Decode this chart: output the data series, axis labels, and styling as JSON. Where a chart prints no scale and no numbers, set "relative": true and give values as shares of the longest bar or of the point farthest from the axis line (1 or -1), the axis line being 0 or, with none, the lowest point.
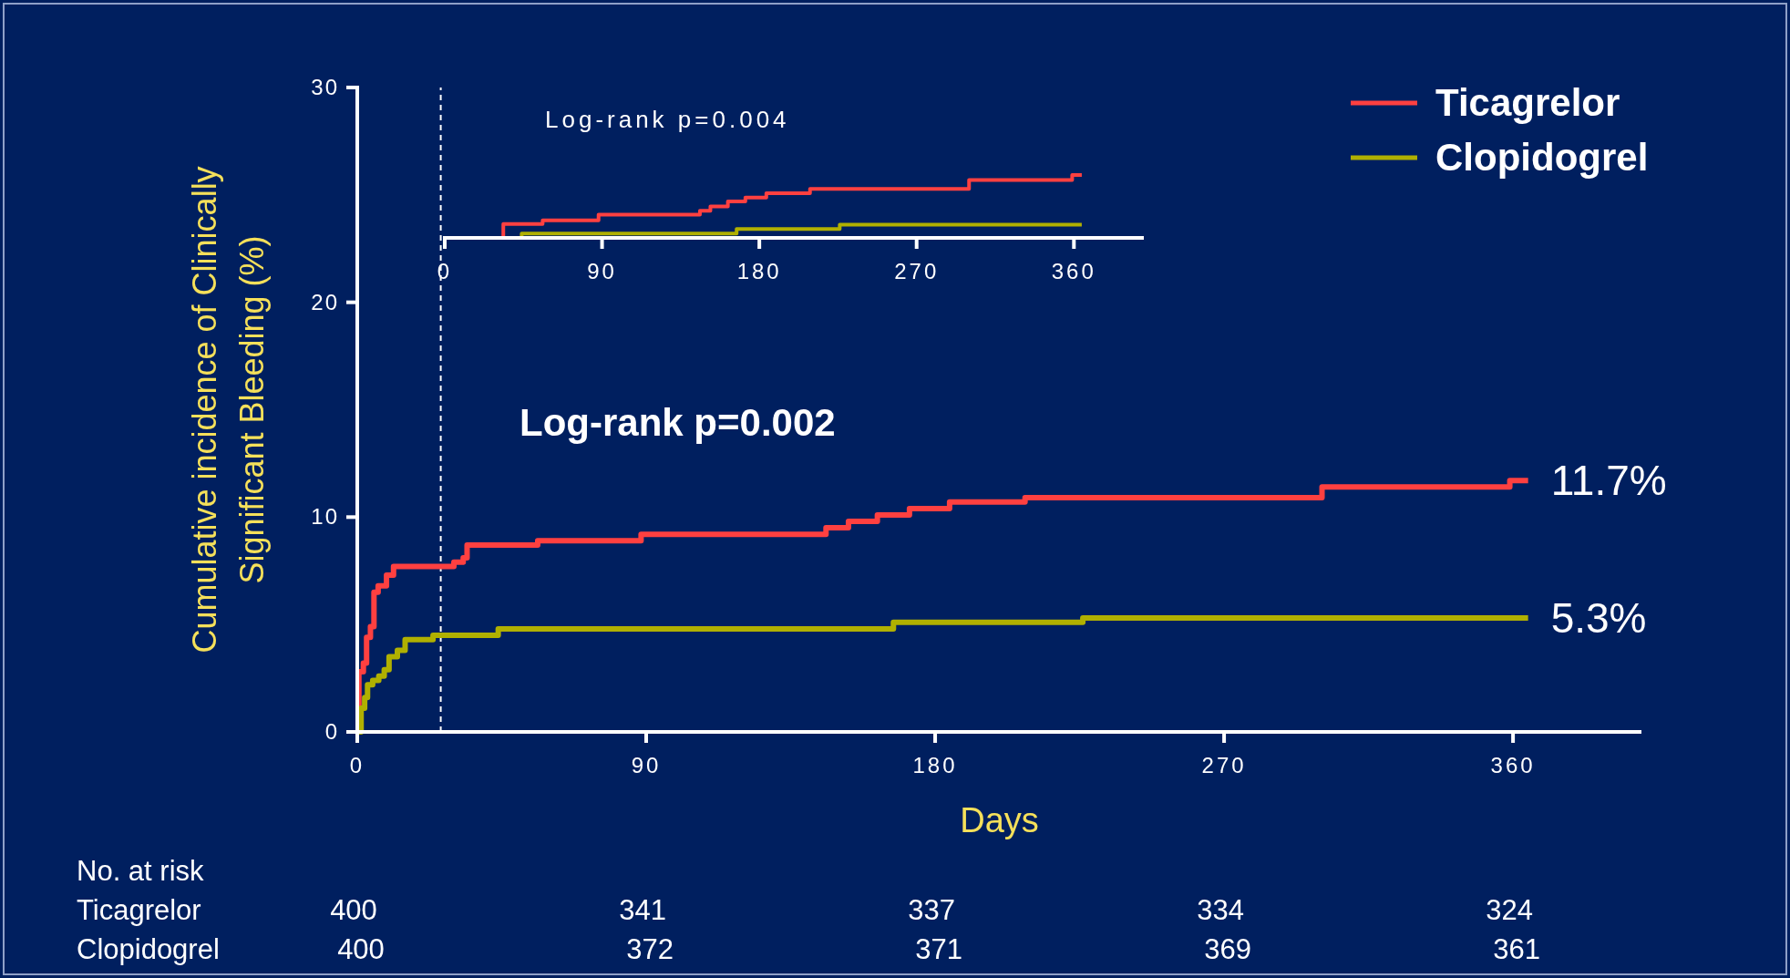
{
  "chart_data": [
    {
      "type": "step",
      "xlabel": "Days",
      "ylabel": "Cumulative incidence of Clinically\nSignificant Bleeding (%)",
      "xlim": [
        0,
        400
      ],
      "xticks": [
        0,
        90,
        180,
        270,
        360
      ],
      "ylim": [
        0,
        30
      ],
      "yticks": [
        0,
        10,
        20,
        30
      ],
      "legend": "top right",
      "grid": false,
      "series": [
        {
          "name": "Ticagrelor",
          "color": "#ff4040",
          "x": [
            0,
            0.5,
            1.9,
            2.9,
            4.1,
            5.2,
            6.5,
            9.1,
            11.3,
            30.1,
            33,
            34.2,
            56.2,
            88.4,
            146,
            153,
            162,
            172,
            184.5,
            208,
            300.5,
            359,
            364.7
          ],
          "values": [
            0,
            2.8,
            3.2,
            4.4,
            4.9,
            6.5,
            6.8,
            7.3,
            7.7,
            7.9,
            8.1,
            8.7,
            8.9,
            9.2,
            9.5,
            9.8,
            10.1,
            10.4,
            10.7,
            10.9,
            11.4,
            11.7,
            11.7
          ]
        },
        {
          "name": "Clopidogrel",
          "color": "#b0b000",
          "x": [
            0,
            1.2,
            2.3,
            3.2,
            4.8,
            6.7,
            8.4,
            9.9,
            12.5,
            14.9,
            23.6,
            43.9,
            167,
            226,
            364.7
          ],
          "values": [
            0,
            1.1,
            1.6,
            2.2,
            2.4,
            2.6,
            2.9,
            3.5,
            3.8,
            4.3,
            4.5,
            4.8,
            5.1,
            5.3,
            5.3
          ]
        }
      ],
      "ref_lines": [
        {
          "axis": "x",
          "value": 26,
          "color": "#ffffff",
          "line_style": "dashed"
        }
      ],
      "annotations": [
        "Log-rank p=0.002",
        {
          "text": "11.7%",
          "x": 364.7,
          "y": 11.7
        },
        {
          "text": "5.3%",
          "x": 364.7,
          "y": 5.3
        },
        "No. at risk",
        "400",
        "341",
        "337",
        "334",
        "324",
        "400",
        "372",
        "371",
        "369",
        "361"
      ]
    },
    {
      "type": "step",
      "relative": true,
      "xlim": [
        0,
        400
      ],
      "xticks": [
        0,
        90,
        180,
        270,
        360
      ],
      "tick_labels": "x",
      "series": [
        {
          "color": "#ff4040",
          "x": [
            0,
            33.5,
            56,
            88,
            146,
            152,
            162,
            172,
            184,
            209,
            300,
            359,
            364.5
          ],
          "values": [
            0,
            0.22,
            0.28,
            0.37,
            0.43,
            0.5,
            0.58,
            0.64,
            0.71,
            0.78,
            0.92,
            1,
            1
          ]
        },
        {
          "color": "#b0b000",
          "x": [
            0,
            44,
            167,
            226,
            364.5
          ],
          "values": [
            0,
            0.07,
            0.14,
            0.21,
            0.21
          ]
        }
      ],
      "annotations": [
        "Log-rank p=0.004"
      ]
    }
  ]
}
